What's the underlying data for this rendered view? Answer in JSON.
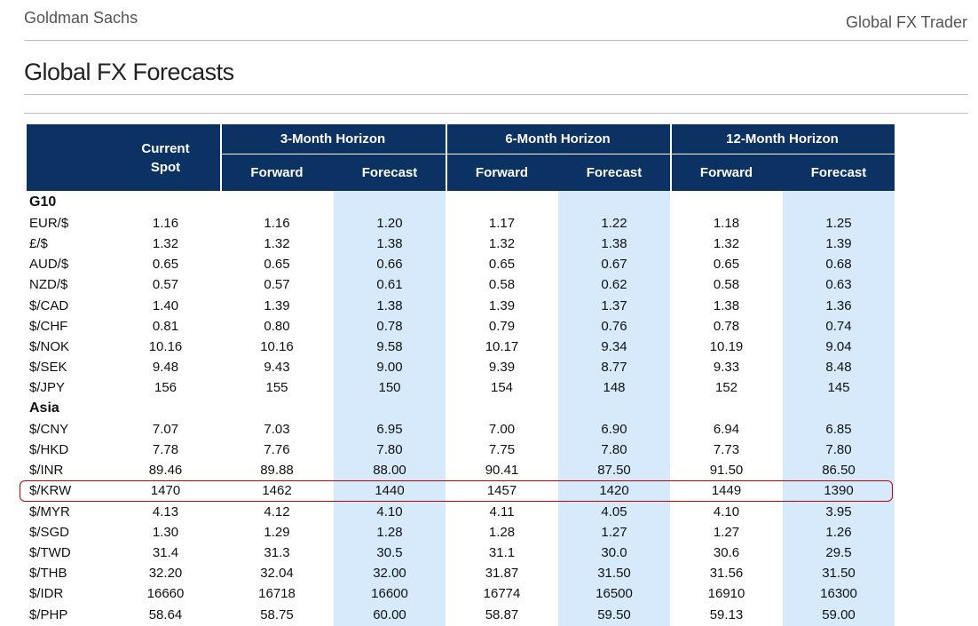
{
  "header": {
    "brand": "Goldman Sachs",
    "product": "Global FX Trader"
  },
  "title": "Global FX Forecasts",
  "table": {
    "spot_header": "Current Spot",
    "groups": [
      "3-Month Horizon",
      "6-Month Horizon",
      "12-Month Horizon"
    ],
    "subheaders": [
      "Forward",
      "Forecast"
    ],
    "sections": [
      {
        "name": "G10",
        "rows": [
          [
            "EUR/$",
            "1.16",
            "1.16",
            "1.20",
            "1.17",
            "1.22",
            "1.18",
            "1.25"
          ],
          [
            "£/$",
            "1.32",
            "1.32",
            "1.38",
            "1.32",
            "1.38",
            "1.32",
            "1.39"
          ],
          [
            "AUD/$",
            "0.65",
            "0.65",
            "0.66",
            "0.65",
            "0.67",
            "0.65",
            "0.68"
          ],
          [
            "NZD/$",
            "0.57",
            "0.57",
            "0.61",
            "0.58",
            "0.62",
            "0.58",
            "0.63"
          ],
          [
            "$/CAD",
            "1.40",
            "1.39",
            "1.38",
            "1.39",
            "1.37",
            "1.38",
            "1.36"
          ],
          [
            "$/CHF",
            "0.81",
            "0.80",
            "0.78",
            "0.79",
            "0.76",
            "0.78",
            "0.74"
          ],
          [
            "$/NOK",
            "10.16",
            "10.16",
            "9.58",
            "10.17",
            "9.34",
            "10.19",
            "9.04"
          ],
          [
            "$/SEK",
            "9.48",
            "9.43",
            "9.00",
            "9.39",
            "8.77",
            "9.33",
            "8.48"
          ],
          [
            "$/JPY",
            "156",
            "155",
            "150",
            "154",
            "148",
            "152",
            "145"
          ]
        ]
      },
      {
        "name": "Asia",
        "rows": [
          [
            "$/CNY",
            "7.07",
            "7.03",
            "6.95",
            "7.00",
            "6.90",
            "6.94",
            "6.85"
          ],
          [
            "$/HKD",
            "7.78",
            "7.76",
            "7.80",
            "7.75",
            "7.80",
            "7.73",
            "7.80"
          ],
          [
            "$/INR",
            "89.46",
            "89.88",
            "88.00",
            "90.41",
            "87.50",
            "91.50",
            "86.50"
          ],
          [
            "$/KRW",
            "1470",
            "1462",
            "1440",
            "1457",
            "1420",
            "1449",
            "1390"
          ],
          [
            "$/MYR",
            "4.13",
            "4.12",
            "4.10",
            "4.11",
            "4.05",
            "4.10",
            "3.95"
          ],
          [
            "$/SGD",
            "1.30",
            "1.29",
            "1.28",
            "1.28",
            "1.27",
            "1.27",
            "1.26"
          ],
          [
            "$/TWD",
            "31.4",
            "31.3",
            "30.5",
            "31.1",
            "30.0",
            "30.6",
            "29.5"
          ],
          [
            "$/THB",
            "32.20",
            "32.04",
            "32.00",
            "31.87",
            "31.50",
            "31.56",
            "31.50"
          ],
          [
            "$/IDR",
            "16660",
            "16718",
            "16600",
            "16774",
            "16500",
            "16910",
            "16300"
          ],
          [
            "$/PHP",
            "58.64",
            "58.75",
            "60.00",
            "58.87",
            "59.50",
            "59.13",
            "59.00"
          ]
        ]
      }
    ]
  }
}
